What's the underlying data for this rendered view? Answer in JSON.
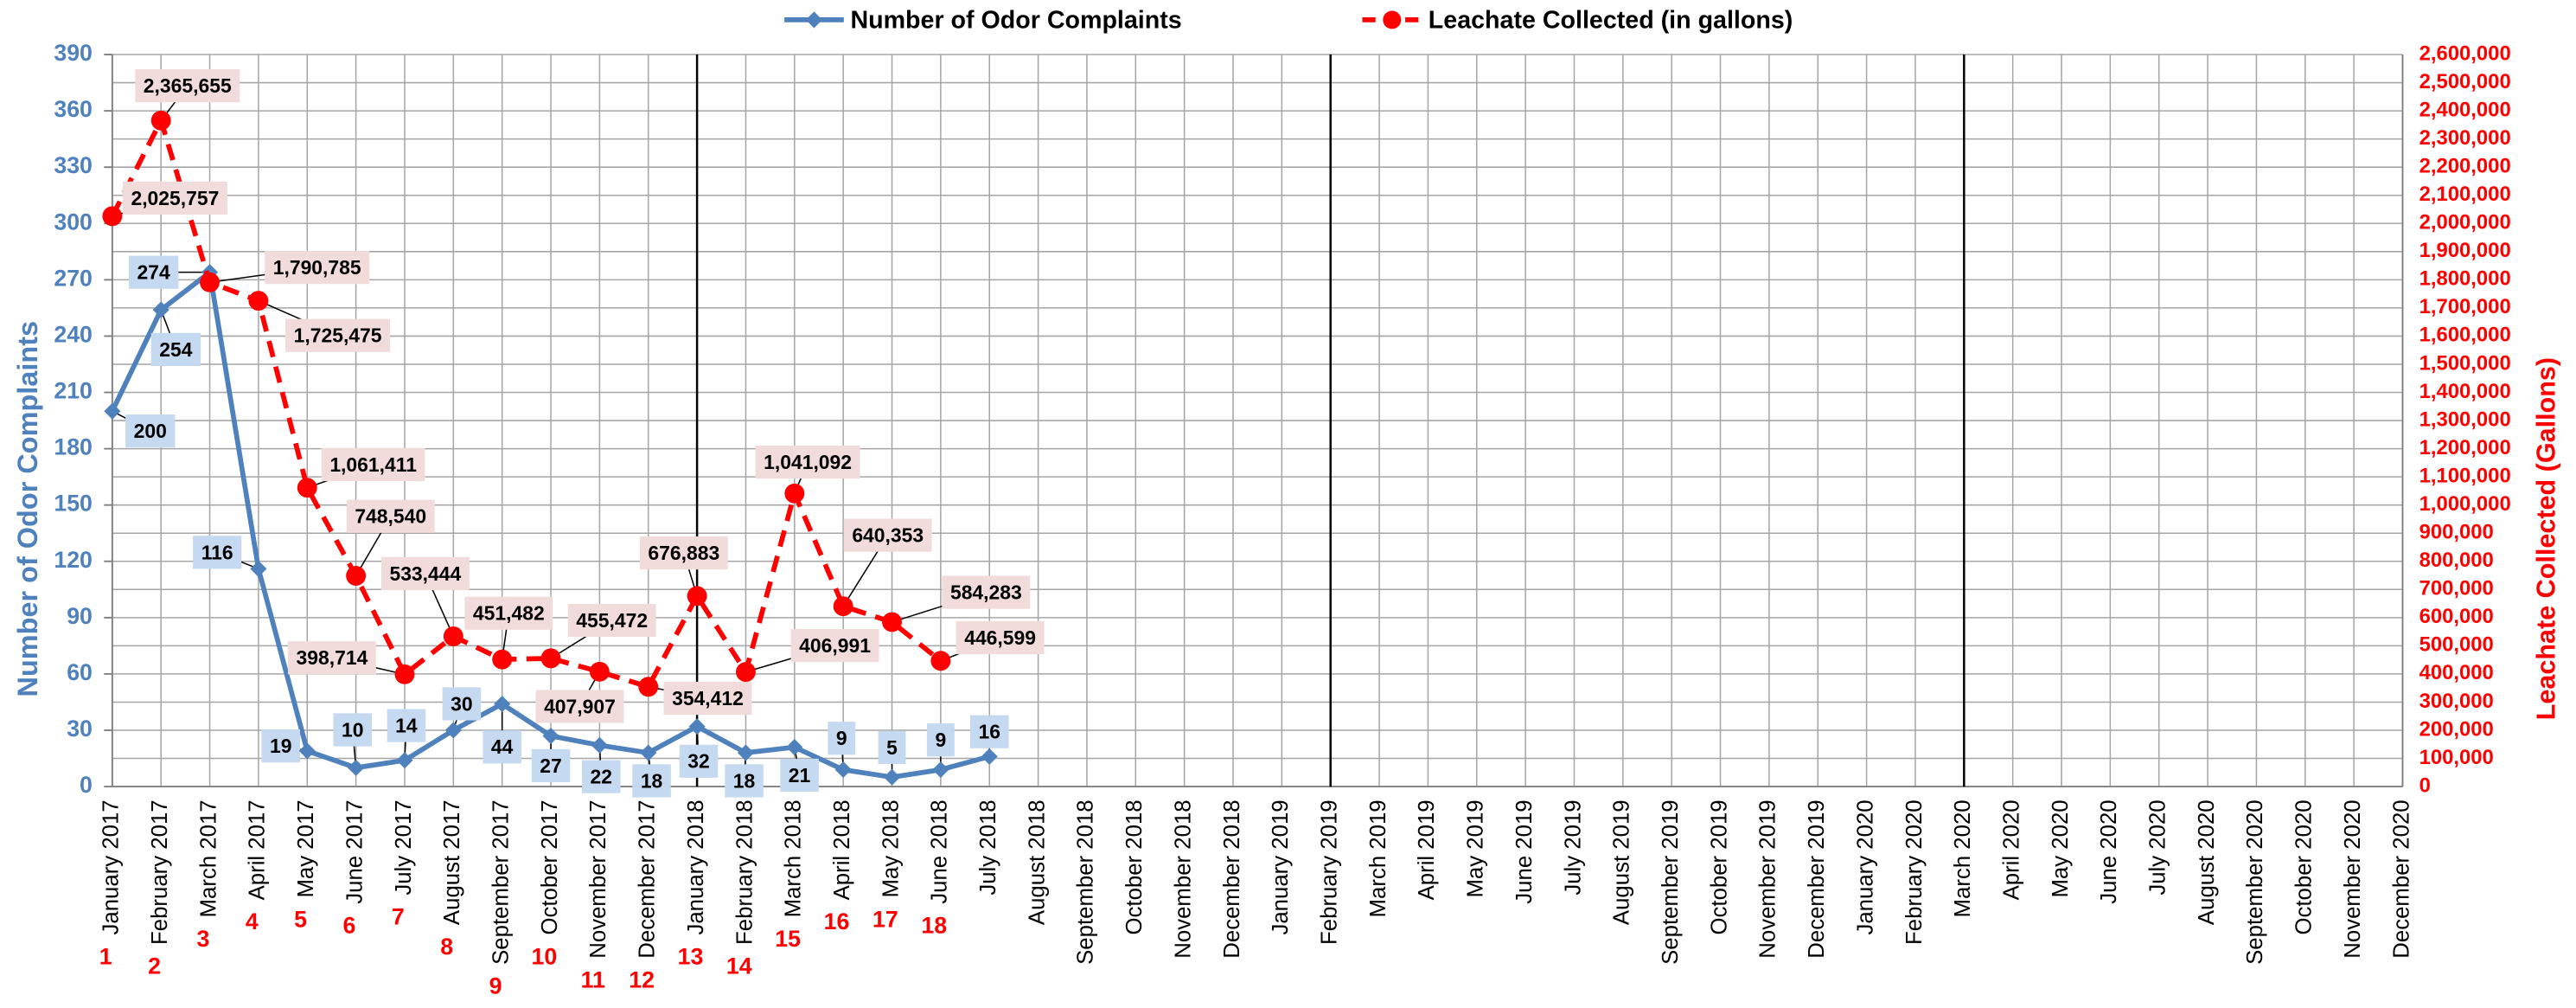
{
  "chart_data": {
    "type": "line",
    "categories": [
      "January 2017",
      "February 2017",
      "March 2017",
      "April 2017",
      "May 2017",
      "June 2017",
      "July 2017",
      "August 2017",
      "September 2017",
      "October 2017",
      "November 2017",
      "December 2017",
      "January 2018",
      "February 2018",
      "March 2018",
      "April 2018",
      "May 2018",
      "June 2018",
      "July 2018",
      "August 2018",
      "September 2018",
      "October 2018",
      "November 2018",
      "December 2018",
      "January 2019",
      "February 2019",
      "March 2019",
      "April 2019",
      "May 2019",
      "June 2019",
      "July 2019",
      "August 2019",
      "September 2019",
      "October 2019",
      "November 2019",
      "December 2019",
      "January 2020",
      "February 2020",
      "March 2020",
      "April 2020",
      "May 2020",
      "June 2020",
      "July 2020",
      "August 2020",
      "September 2020",
      "October 2020",
      "November 2020",
      "December 2020"
    ],
    "series": [
      {
        "name": "Number of Odor Complaints",
        "color": "#4f81bd",
        "marker": "diamond",
        "values": [
          200,
          254,
          274,
          116,
          19,
          10,
          14,
          30,
          44,
          27,
          22,
          18,
          32,
          18,
          21,
          9,
          5,
          9,
          16,
          null,
          null,
          null,
          null,
          null,
          null,
          null,
          null,
          null,
          null,
          null,
          null,
          null,
          null,
          null,
          null,
          null,
          null,
          null,
          null,
          null,
          null,
          null,
          null,
          null,
          null,
          null,
          null,
          null
        ]
      },
      {
        "name": "Leachate Collected (in gallons)",
        "color": "#ff0000",
        "marker": "circle",
        "dashed": true,
        "axis": "y2",
        "values": [
          2025757,
          2365655,
          1790785,
          1725475,
          1061411,
          748540,
          398714,
          533444,
          451482,
          455472,
          407907,
          354412,
          676883,
          406991,
          1041092,
          640353,
          584283,
          446599,
          null,
          null,
          null,
          null,
          null,
          null,
          null,
          null,
          null,
          null,
          null,
          null,
          null,
          null,
          null,
          null,
          null,
          null,
          null,
          null,
          null,
          null,
          null,
          null,
          null,
          null,
          null,
          null,
          null,
          null
        ],
        "value_labels": [
          "2,025,757",
          "2,365,655",
          "1,790,785",
          "1,725,475",
          "1,061,411",
          "748,540",
          "398,714",
          "533,444",
          "451,482",
          "455,472",
          "407,907",
          "354,412",
          "676,883",
          "406,991",
          "1,041,092",
          "640,353",
          "584,283",
          "446,599",
          null,
          null,
          null,
          null,
          null,
          null,
          null,
          null,
          null,
          null,
          null,
          null,
          null,
          null,
          null,
          null,
          null,
          null,
          null,
          null,
          null,
          null,
          null,
          null,
          null,
          null,
          null,
          null,
          null,
          null
        ]
      }
    ],
    "ylabel": "Number of Odor Complaints",
    "y2label": "Leachate Collected (Gallons)",
    "ylim": [
      0,
      390
    ],
    "yticks": [
      0,
      30,
      60,
      90,
      120,
      150,
      180,
      210,
      240,
      270,
      300,
      330,
      360,
      390
    ],
    "y2lim": [
      0,
      2600000
    ],
    "y2ticks": [
      0,
      {
        "value": 100000,
        "label": "100,000"
      },
      {
        "value": 200000,
        "label": "200,000"
      },
      {
        "value": 300000,
        "label": "300,000"
      },
      {
        "value": 400000,
        "label": "400,000"
      },
      {
        "value": 500000,
        "label": "500,000"
      },
      {
        "value": 600000,
        "label": "600,000"
      },
      {
        "value": 700000,
        "label": "700,000"
      },
      {
        "value": 800000,
        "label": "800,000"
      },
      {
        "value": 900000,
        "label": "900,000"
      },
      {
        "value": 1000000,
        "label": "1,000,000"
      },
      {
        "value": 1100000,
        "label": "1,100,000"
      },
      {
        "value": 1200000,
        "label": "1,200,000"
      },
      {
        "value": 1300000,
        "label": "1,300,000"
      },
      {
        "value": 1400000,
        "label": "1,400,000"
      },
      {
        "value": 1500000,
        "label": "1,500,000"
      },
      {
        "value": 1600000,
        "label": "1,600,000"
      },
      {
        "value": 1700000,
        "label": "1,700,000"
      },
      {
        "value": 1800000,
        "label": "1,800,000"
      },
      {
        "value": 1900000,
        "label": "1,900,000"
      },
      {
        "value": 2000000,
        "label": "2,000,000"
      },
      {
        "value": 2100000,
        "label": "2,100,000"
      },
      {
        "value": 2200000,
        "label": "2,200,000"
      },
      {
        "value": 2300000,
        "label": "2,300,000"
      },
      {
        "value": 2400000,
        "label": "2,400,000"
      },
      {
        "value": 2500000,
        "label": "2,500,000"
      },
      {
        "value": 2600000,
        "label": "2,600,000"
      }
    ],
    "grid": true,
    "legend": "top",
    "vertical_lines": [
      "January 2018",
      "February 2019",
      "March 2020"
    ],
    "month_numbers": [
      1,
      2,
      3,
      4,
      5,
      6,
      7,
      8,
      9,
      10,
      11,
      12,
      13,
      14,
      15,
      16,
      17,
      18
    ]
  }
}
